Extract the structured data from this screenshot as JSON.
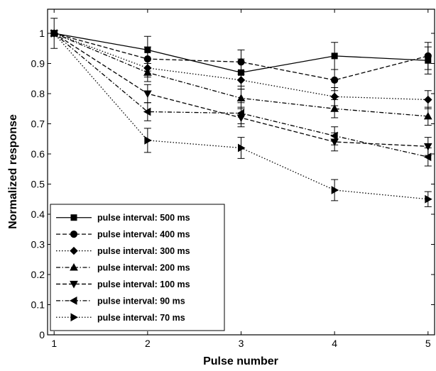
{
  "chart_data": {
    "type": "line",
    "title": "",
    "xlabel": "Pulse number",
    "ylabel": "Normalized response",
    "x": [
      1,
      2,
      3,
      4,
      5
    ],
    "xlim": [
      0.93,
      5.07
    ],
    "ylim": [
      0,
      1.08
    ],
    "xticks": [
      "1",
      "2",
      "3",
      "4",
      "5"
    ],
    "yticks": [
      "0",
      "0.1",
      "0.2",
      "0.3",
      "0.4",
      "0.5",
      "0.6",
      "0.7",
      "0.8",
      "0.9",
      "1"
    ],
    "grid": false,
    "legend_position": "lower-left",
    "series": [
      {
        "name": "pulse interval: 500 ms",
        "marker": "square",
        "dash": "solid",
        "values": [
          1,
          0.945,
          0.87,
          0.925,
          0.91
        ],
        "errors": [
          0,
          0.045,
          0.045,
          0.045,
          0.045
        ]
      },
      {
        "name": "pulse interval: 400 ms",
        "marker": "circle",
        "dash": "dashed",
        "values": [
          1,
          0.915,
          0.905,
          0.845,
          0.925
        ],
        "errors": [
          0,
          0.04,
          0.04,
          0.035,
          0.045
        ]
      },
      {
        "name": "pulse interval: 300 ms",
        "marker": "diamond",
        "dash": "dotted",
        "values": [
          1,
          0.885,
          0.845,
          0.79,
          0.78
        ],
        "errors": [
          0.05,
          0.03,
          0.03,
          0.03,
          0.03
        ]
      },
      {
        "name": "pulse interval: 200 ms",
        "marker": "triangle-up",
        "dash": "dashdot",
        "values": [
          1,
          0.87,
          0.785,
          0.75,
          0.725
        ],
        "errors": [
          0,
          0.03,
          0.03,
          0.03,
          0.03
        ]
      },
      {
        "name": "pulse interval: 100 ms",
        "marker": "triangle-down",
        "dash": "dashed",
        "values": [
          1,
          0.8,
          0.72,
          0.64,
          0.625
        ],
        "errors": [
          0,
          0.03,
          0.03,
          0.03,
          0.03
        ]
      },
      {
        "name": "pulse interval: 90 ms",
        "marker": "triangle-left",
        "dash": "dashdot",
        "values": [
          1,
          0.74,
          0.735,
          0.66,
          0.59
        ],
        "errors": [
          0,
          0.03,
          0.035,
          0.03,
          0.03
        ]
      },
      {
        "name": "pulse interval: 70 ms",
        "marker": "triangle-right",
        "dash": "dotted",
        "values": [
          1,
          0.645,
          0.62,
          0.48,
          0.45
        ],
        "errors": [
          0,
          0.04,
          0.035,
          0.035,
          0.025
        ]
      }
    ]
  }
}
